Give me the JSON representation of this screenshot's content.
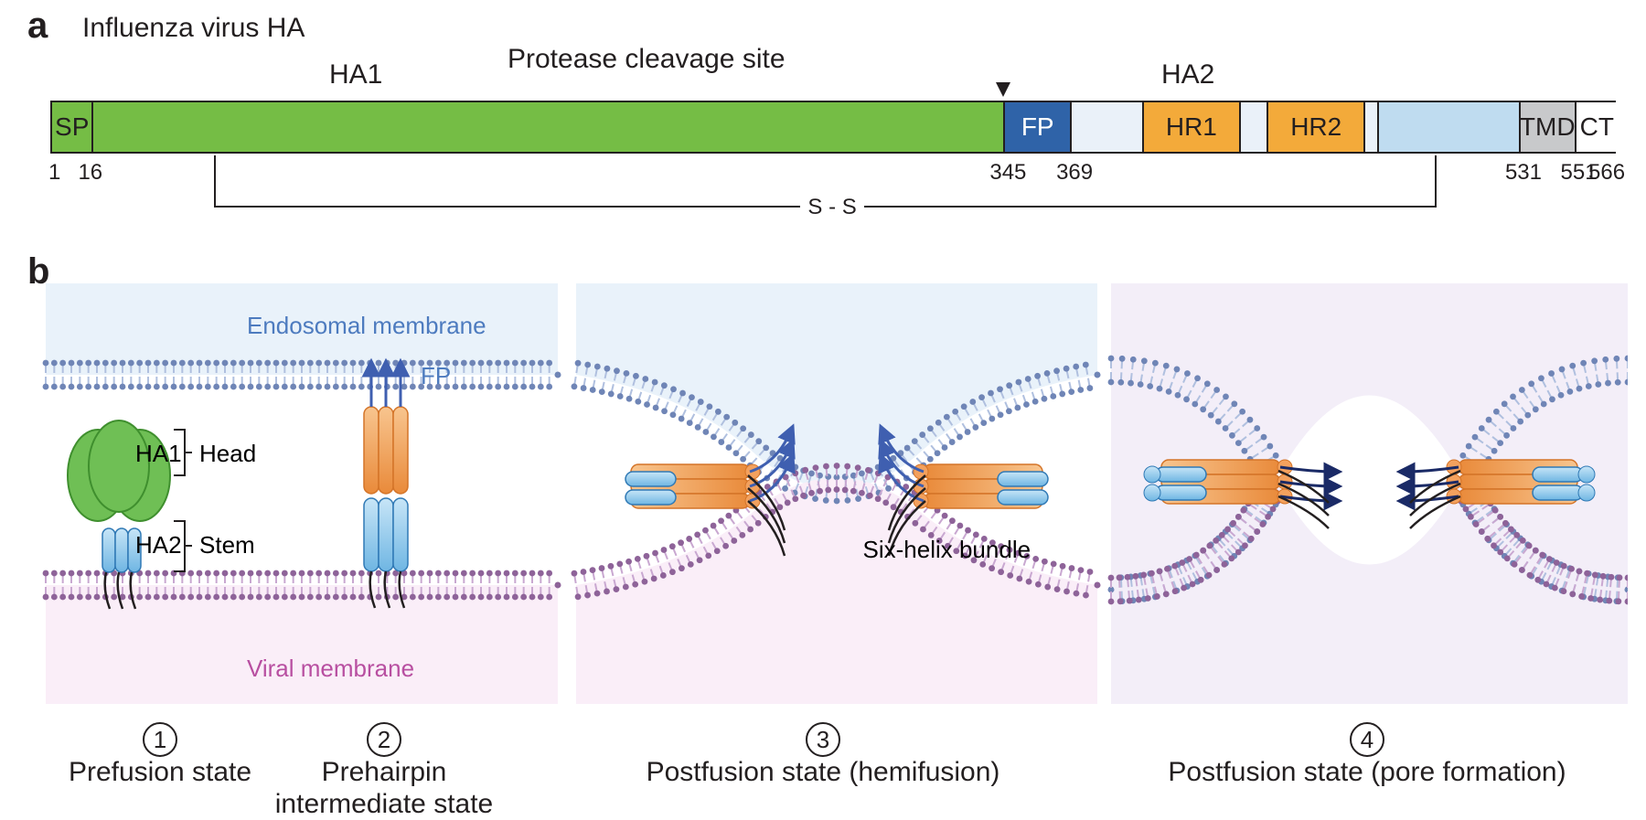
{
  "panelA": {
    "letter": "a",
    "title": "Influenza virus HA",
    "labels": {
      "ha1": "HA1",
      "ha2": "HA2",
      "cleavage": "Protease cleavage site",
      "disulfide": "S - S"
    },
    "totalLength": 566,
    "residueTicks": [
      "1",
      "16",
      "345",
      "369",
      "531",
      "551",
      "566"
    ],
    "domains": [
      {
        "id": "sp",
        "label": "SP",
        "start": 1,
        "end": 16,
        "color": "#75bd45",
        "textAlign": "center"
      },
      {
        "id": "ha1body",
        "label": "",
        "start": 16,
        "end": 345,
        "color": "#75bd45"
      },
      {
        "id": "fp",
        "label": "FP",
        "start": 345,
        "end": 369,
        "color": "#2f63a8",
        "labelColor": "#ffffff"
      },
      {
        "id": "gap1",
        "label": "",
        "start": 369,
        "end": 395,
        "color": "#eaf1f9"
      },
      {
        "id": "hr1",
        "label": "HR1",
        "start": 395,
        "end": 430,
        "color": "#f3aa3a"
      },
      {
        "id": "gap2",
        "label": "",
        "start": 430,
        "end": 440,
        "color": "#eaf1f9"
      },
      {
        "id": "hr2",
        "label": "HR2",
        "start": 440,
        "end": 475,
        "color": "#f3aa3a"
      },
      {
        "id": "gap3",
        "label": "",
        "start": 475,
        "end": 480,
        "color": "#eaf1f9"
      },
      {
        "id": "ext",
        "label": "",
        "start": 480,
        "end": 531,
        "color": "#bfdcf0"
      },
      {
        "id": "tmd",
        "label": "TMD",
        "start": 531,
        "end": 551,
        "color": "#c8c9cb"
      },
      {
        "id": "ct",
        "label": "CT",
        "start": 551,
        "end": 566,
        "color": "#ffffff"
      }
    ],
    "cleavageArrowAt": 345,
    "disulfide": {
      "from": 60,
      "to": 500
    }
  },
  "panelB": {
    "letter": "b",
    "endosomalLabel": "Endosomal membrane",
    "viralLabel": "Viral membrane",
    "fpLabel": "FP",
    "ha1Label": "HA1",
    "ha2Label": "HA2",
    "headLabel": "Head",
    "stemLabel": "Stem",
    "sixHelixLabel": "Six-helix bundle",
    "colors": {
      "endosomeBg": "#e9f2fa",
      "viralBg": "#faeef8",
      "poreBg": "#f3eef8",
      "topBead": "#6f85b6",
      "bottomBead": "#8e6399",
      "topLipid": "#b0c0df",
      "bottomLipid": "#c9a8d1",
      "textBlue": "#4d7bbf",
      "textMagenta": "#b84fa1",
      "haHead": "#6fbf55",
      "headStroke": "#3f8f2e",
      "stemBlue": "#8ec8ec",
      "stemBlueStroke": "#2f79b5",
      "helixOrange": "#f3a15e",
      "helixOrangeStroke": "#d47428",
      "arrowBlue": "#3f5fb0",
      "darkArrow": "#1a2a66"
    },
    "stages": [
      {
        "num": "1",
        "caption": "Prefusion state"
      },
      {
        "num": "2",
        "caption": "Prehairpin\nintermediate state"
      },
      {
        "num": "3",
        "caption": "Postfusion state (hemifusion)"
      },
      {
        "num": "4",
        "caption": "Postfusion state (pore formation)"
      }
    ]
  },
  "geometry": {
    "barLeft": 55,
    "barWidth": 1712
  }
}
